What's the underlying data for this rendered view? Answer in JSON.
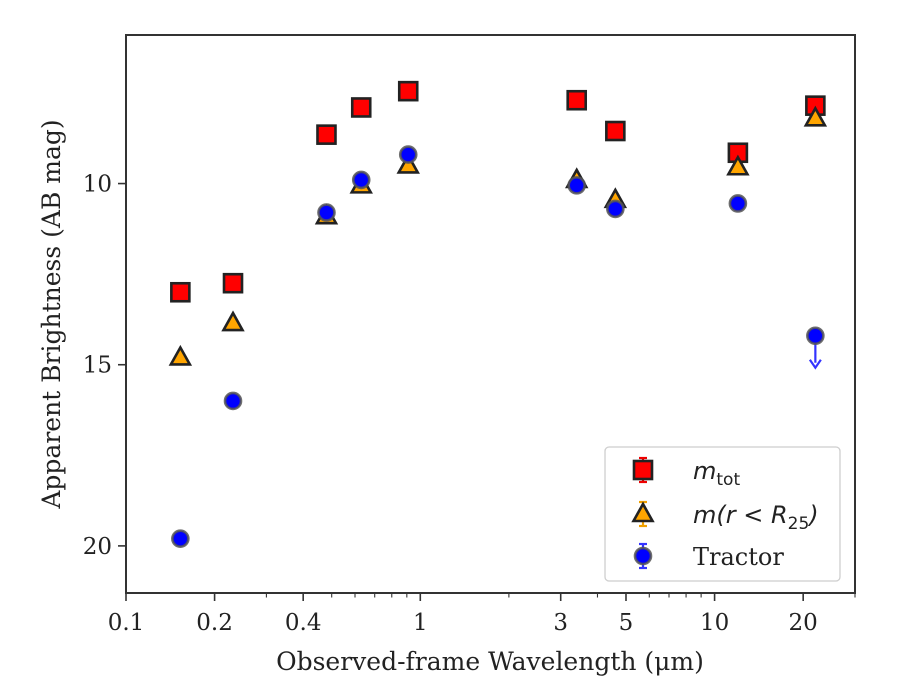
{
  "chart_data": {
    "type": "scatter",
    "xlabel": "Observed-frame Wavelength (μm)",
    "ylabel": "Apparent Brightness (AB mag)",
    "x_scale": "log",
    "xlim": [
      0.1,
      30
    ],
    "ylim": [
      21.3,
      5.9
    ],
    "y_inverted": true,
    "x_ticks": [
      0.1,
      0.2,
      0.4,
      1,
      3,
      5,
      10,
      20
    ],
    "x_tick_labels": [
      "0.1",
      "0.2",
      "0.4",
      "1",
      "3",
      "5",
      "10",
      "20"
    ],
    "y_ticks": [
      10,
      15,
      20
    ],
    "y_tick_labels": [
      "10",
      "15",
      "20"
    ],
    "grid": false,
    "legend_position": "lower-right",
    "series": [
      {
        "name": "m_tot",
        "legend_main": "m",
        "legend_sub": "tot",
        "marker": "square",
        "color": "#ff0000",
        "x": [
          0.153,
          0.231,
          0.48,
          0.63,
          0.91,
          3.4,
          4.6,
          12.0,
          22.0
        ],
        "y": [
          13.0,
          12.75,
          8.65,
          7.9,
          7.45,
          7.7,
          8.55,
          9.15,
          7.85
        ]
      },
      {
        "name": "m(r < R25)",
        "legend_main": "m(r < R",
        "legend_sub": "25",
        "legend_end": ")",
        "marker": "triangle",
        "color": "#ffa500",
        "x": [
          0.153,
          0.231,
          0.48,
          0.63,
          0.91,
          3.4,
          4.6,
          12.0,
          22.0
        ],
        "y": [
          14.8,
          13.85,
          10.9,
          10.05,
          9.5,
          9.9,
          10.45,
          9.55,
          8.2
        ]
      },
      {
        "name": "Tractor",
        "legend_main": "Tractor",
        "marker": "circle",
        "color": "#0000ff",
        "x": [
          0.153,
          0.231,
          0.48,
          0.63,
          0.91,
          3.4,
          4.6,
          12.0,
          22.0
        ],
        "y": [
          19.8,
          16.0,
          10.8,
          9.9,
          9.2,
          10.05,
          10.7,
          10.55,
          14.2
        ],
        "upper_limit": [
          false,
          false,
          false,
          false,
          false,
          false,
          false,
          false,
          true
        ]
      }
    ]
  }
}
